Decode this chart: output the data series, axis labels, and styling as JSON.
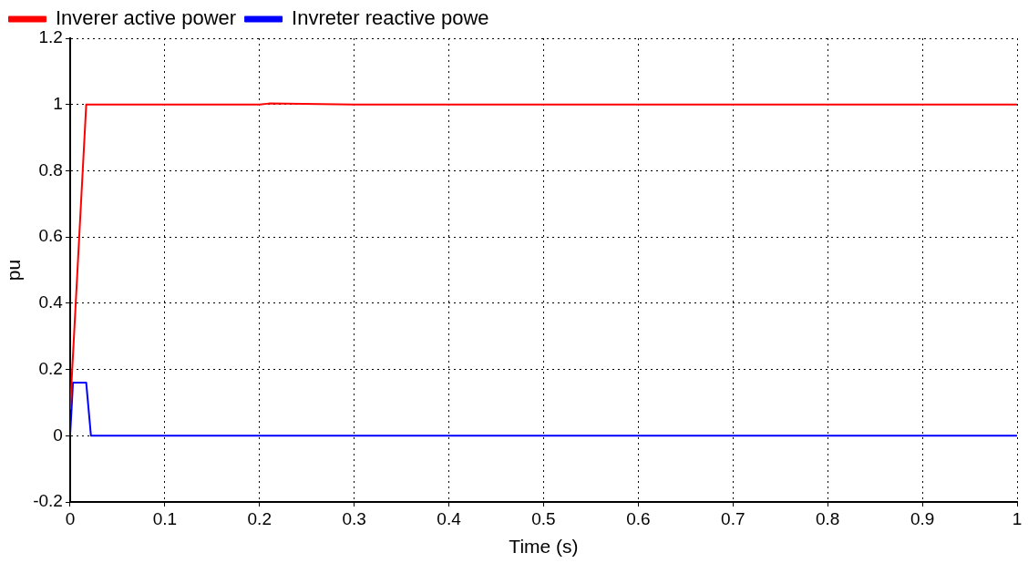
{
  "chart_data": {
    "type": "line",
    "xlabel": "Time (s)",
    "ylabel": "pu",
    "xlim": [
      0,
      1
    ],
    "xticks": [
      0,
      0.1,
      0.2,
      0.3,
      0.4,
      0.5,
      0.6,
      0.7,
      0.8,
      0.9,
      1
    ],
    "ylim": [
      -0.2,
      1.2
    ],
    "yticks": [
      -0.2,
      0,
      0.2,
      0.4,
      0.6,
      0.8,
      1,
      1.2
    ],
    "grid": true,
    "legend": "top left",
    "marker": "none",
    "line_style": "solid",
    "series": [
      {
        "name": "Inverer active power",
        "color": "#ff0000",
        "x": [
          0,
          0.017,
          0.2,
          0.21,
          0.3,
          0.5,
          0.7,
          1
        ],
        "values": [
          0.08,
          1,
          1,
          1.003,
          1,
          1,
          1,
          1
        ]
      },
      {
        "name": "Invreter reactive powe",
        "color": "#0000ff",
        "x": [
          0,
          0.003,
          0.017,
          0.022,
          0.3,
          0.6,
          1
        ],
        "values": [
          0,
          0.16,
          0.16,
          0,
          0,
          0,
          0
        ]
      }
    ]
  }
}
